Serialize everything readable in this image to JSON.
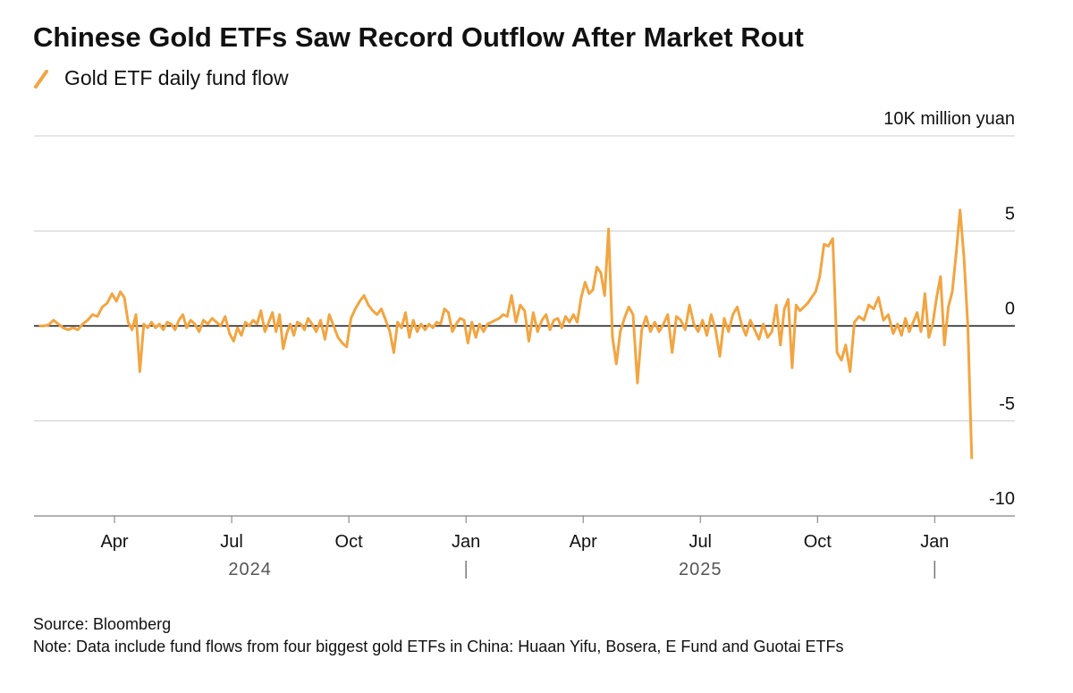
{
  "chart_data": {
    "type": "line",
    "title": "Chinese Gold ETFs Saw Record Outflow After Market Rout",
    "y_label": "10K million yuan",
    "source": "Source: Bloomberg",
    "note": "Note: Data include fund flows from four biggest gold ETFs in China: Huaan Yifu, Bosera, E Fund and Guotai ETFs",
    "x": [
      "2024-02",
      "2024-02",
      "2024-02",
      "2024-02",
      "2024-02",
      "2024-02",
      "2024-02",
      "2024-02",
      "2024-03",
      "2024-03",
      "2024-03",
      "2024-03",
      "2024-03",
      "2024-03",
      "2024-03",
      "2024-03",
      "2024-04",
      "2024-04",
      "2024-04",
      "2024-04",
      "2024-04",
      "2024-04",
      "2024-04",
      "2024-04",
      "2024-04",
      "2024-04",
      "2024-05",
      "2024-05",
      "2024-05",
      "2024-05",
      "2024-05",
      "2024-05",
      "2024-05",
      "2024-05",
      "2024-05",
      "2024-05",
      "2024-06",
      "2024-06",
      "2024-06",
      "2024-06",
      "2024-06",
      "2024-06",
      "2024-06",
      "2024-06",
      "2024-06",
      "2024-07",
      "2024-07",
      "2024-07",
      "2024-07",
      "2024-07",
      "2024-07",
      "2024-07",
      "2024-07",
      "2024-07",
      "2024-07",
      "2024-08",
      "2024-08",
      "2024-08",
      "2024-08",
      "2024-08",
      "2024-08",
      "2024-08",
      "2024-08",
      "2024-08",
      "2024-08",
      "2024-08",
      "2024-09",
      "2024-09",
      "2024-09",
      "2024-09",
      "2024-09",
      "2024-09",
      "2024-09",
      "2024-09",
      "2024-09",
      "2024-10",
      "2024-10",
      "2024-10",
      "2024-10",
      "2024-10",
      "2024-10",
      "2024-10",
      "2024-10",
      "2024-10",
      "2024-11",
      "2024-11",
      "2024-11",
      "2024-11",
      "2024-11",
      "2024-11",
      "2024-11",
      "2024-11",
      "2024-11",
      "2024-11",
      "2024-12",
      "2024-12",
      "2024-12",
      "2024-12",
      "2024-12",
      "2024-12",
      "2024-12",
      "2024-12",
      "2024-12",
      "2024-12",
      "2025-01",
      "2025-01",
      "2025-01",
      "2025-01",
      "2025-01",
      "2025-01",
      "2025-01",
      "2025-01",
      "2025-01",
      "2025-01",
      "2025-02",
      "2025-02",
      "2025-02",
      "2025-02",
      "2025-02",
      "2025-02",
      "2025-02",
      "2025-02",
      "2025-02",
      "2025-03",
      "2025-03",
      "2025-03",
      "2025-03",
      "2025-03",
      "2025-03",
      "2025-03",
      "2025-03",
      "2025-03",
      "2025-03",
      "2025-04",
      "2025-04",
      "2025-04",
      "2025-04",
      "2025-04",
      "2025-04",
      "2025-04",
      "2025-04",
      "2025-04",
      "2025-04",
      "2025-05",
      "2025-05",
      "2025-05",
      "2025-05",
      "2025-05",
      "2025-05",
      "2025-05",
      "2025-05",
      "2025-05",
      "2025-06",
      "2025-06",
      "2025-06",
      "2025-06",
      "2025-06",
      "2025-06",
      "2025-06",
      "2025-06",
      "2025-06",
      "2025-07",
      "2025-07",
      "2025-07",
      "2025-07",
      "2025-07",
      "2025-07",
      "2025-07",
      "2025-07",
      "2025-07",
      "2025-08",
      "2025-08",
      "2025-08",
      "2025-08",
      "2025-08",
      "2025-08",
      "2025-08",
      "2025-08",
      "2025-08",
      "2025-09",
      "2025-09",
      "2025-09",
      "2025-09",
      "2025-09",
      "2025-09",
      "2025-09",
      "2025-09",
      "2025-09",
      "2025-09",
      "2025-10",
      "2025-10",
      "2025-10",
      "2025-10",
      "2025-10",
      "2025-10",
      "2025-10",
      "2025-10",
      "2025-10",
      "2025-11",
      "2025-11",
      "2025-11",
      "2025-11",
      "2025-11",
      "2025-11",
      "2025-11",
      "2025-11",
      "2025-12",
      "2025-12",
      "2025-12",
      "2025-12",
      "2025-12",
      "2025-12",
      "2025-12",
      "2025-12",
      "2025-12",
      "2025-12",
      "2026-01",
      "2026-01",
      "2026-01",
      "2026-01",
      "2026-01",
      "2026-01",
      "2026-01",
      "2026-01",
      "2026-01",
      "2026-01"
    ],
    "series": [
      {
        "name": "Gold ETF daily fund flow",
        "color": "#f2a541",
        "values": [
          0,
          0,
          0.05,
          0.3,
          0.1,
          -0.1,
          -0.2,
          -0.1,
          -0.2,
          0.1,
          0.3,
          0.6,
          0.5,
          1.0,
          1.2,
          1.7,
          1.3,
          1.8,
          1.5,
          0.2,
          -0.2,
          0.6,
          -2.4,
          0.1,
          -0.1,
          0.2,
          -0.1,
          0.1,
          -0.2,
          0.2,
          0.1,
          -0.2,
          0.3,
          0.6,
          -0.1,
          0.3,
          0.1,
          -0.3,
          0.3,
          0.1,
          0.4,
          0.2,
          0,
          0.5,
          -0.4,
          -0.8,
          -0.1,
          -0.5,
          0.2,
          0,
          0.3,
          0.1,
          0.8,
          -0.3,
          0.2,
          0.7,
          -0.3,
          0.6,
          -1.2,
          -0.4,
          0.1,
          -0.5,
          0.2,
          0.1,
          -0.2,
          0.4,
          0.1,
          -0.3,
          0.3,
          -0.7,
          0.6,
          0,
          -0.6,
          -0.9,
          -1.1,
          0.4,
          0.9,
          1.3,
          1.6,
          1.1,
          0.8,
          0.6,
          0.9,
          0.3,
          -0.3,
          -1.4,
          0.2,
          -0.1,
          0.7,
          -0.6,
          0.3,
          -0.3,
          0.1,
          -0.2,
          0.1,
          -0.1,
          0.2,
          0.1,
          0.9,
          0.7,
          -0.3,
          0.1,
          0.4,
          0.3,
          -0.9,
          0.2,
          -0.6,
          0.1,
          -0.3,
          0.1,
          0.2,
          0.3,
          0.4,
          0.6,
          0.5,
          1.6,
          0.2,
          1.1,
          0.8,
          -0.8,
          0.7,
          -0.3,
          0.3,
          0.6,
          -0.2,
          0.3,
          0.4,
          -0.1,
          0.5,
          0.2,
          0.6,
          0.2,
          1.5,
          2.3,
          1.7,
          1.9,
          3.1,
          2.8,
          1.6,
          5.1,
          -0.6,
          -2.0,
          -0.3,
          0.4,
          1.0,
          0.6,
          -3.0,
          -0.2,
          0.5,
          -0.3,
          0.2,
          -0.3,
          0.1,
          0.6,
          -1.4,
          0.5,
          0.3,
          -0.2,
          1.1,
          0.1,
          -0.3,
          0.3,
          -0.5,
          0.6,
          -0.2,
          -1.6,
          0.4,
          -0.3,
          0.6,
          1.0,
          0.1,
          -0.5,
          0.3,
          -0.2,
          -0.7,
          0.1,
          -0.6,
          -0.3,
          1.1,
          -1.0,
          0.9,
          1.4,
          -2.2,
          1.1,
          0.8,
          1.0,
          1.2,
          1.5,
          1.8,
          2.6,
          4.3,
          4.2,
          4.6,
          -1.4,
          -1.8,
          -1.0,
          -2.4,
          0.2,
          0.5,
          0.3,
          1.1,
          0.9,
          1.5,
          0.3,
          0.6,
          -0.4,
          0.1,
          -0.5,
          0.4,
          -0.3,
          0.2,
          0.7,
          -0.3,
          1.7,
          -0.6,
          0.1,
          1.5,
          2.6,
          -1.0,
          1.0,
          1.8,
          3.8,
          6.1,
          3.6,
          0,
          -7.0
        ]
      }
    ],
    "xlim": [
      "2024-01",
      "2026-02"
    ],
    "xticks": [
      {
        "value": "2024-04",
        "label": "Apr"
      },
      {
        "value": "2024-07",
        "label": "Jul"
      },
      {
        "value": "2024-10",
        "label": "Oct"
      },
      {
        "value": "2025-01",
        "label": "Jan"
      },
      {
        "value": "2025-04",
        "label": "Apr"
      },
      {
        "value": "2025-07",
        "label": "Jul"
      },
      {
        "value": "2025-10",
        "label": "Oct"
      },
      {
        "value": "2026-01",
        "label": "Jan"
      }
    ],
    "years": [
      "2024",
      "2025"
    ],
    "ylim": [
      -10,
      10
    ],
    "yticks": [
      -10,
      -5,
      0,
      5
    ],
    "grid": true
  }
}
